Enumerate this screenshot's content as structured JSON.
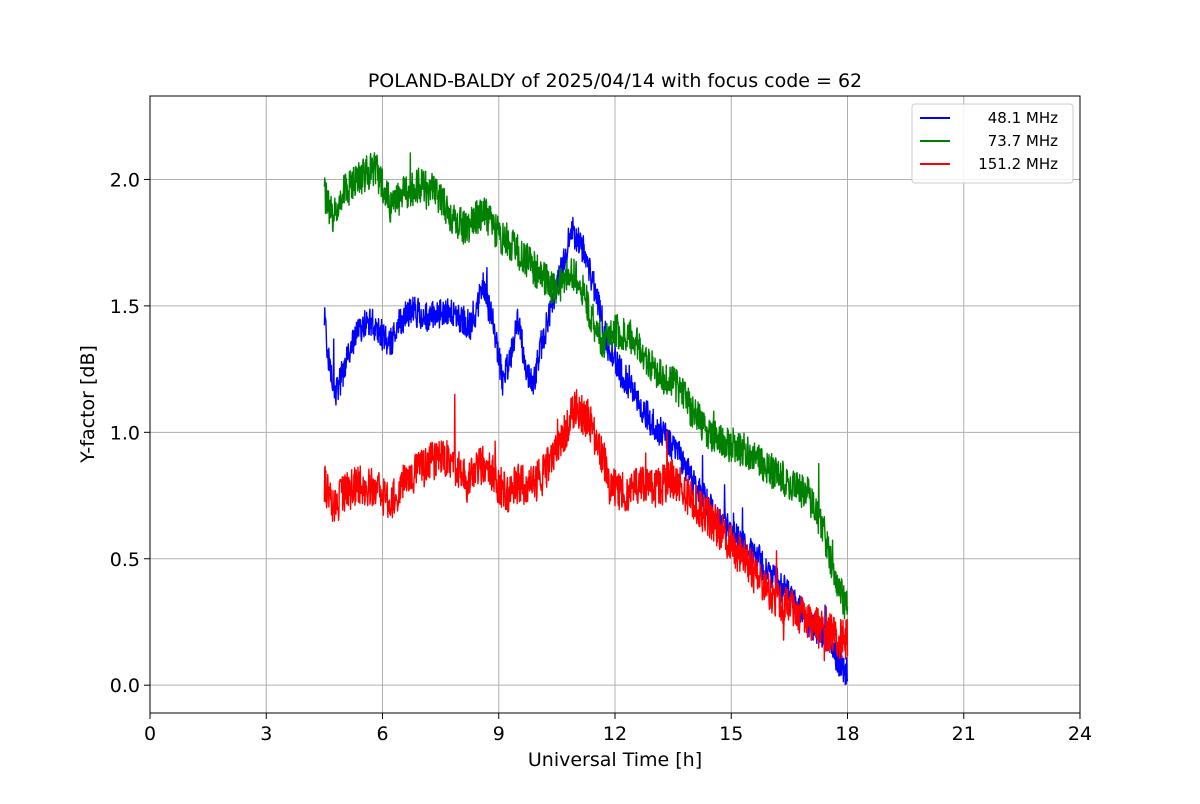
{
  "chart_data": {
    "type": "line",
    "title": "POLAND-BALDY of 2025/04/14 with focus code = 62",
    "xlabel": "Universal Time [h]",
    "ylabel": "Y-factor [dB]",
    "xlim": [
      0,
      24
    ],
    "ylim": [
      -0.11,
      2.33
    ],
    "xticks": [
      0,
      3,
      6,
      9,
      12,
      15,
      18,
      21,
      24
    ],
    "xtick_labels": [
      "0",
      "3",
      "6",
      "9",
      "12",
      "15",
      "18",
      "21",
      "24"
    ],
    "yticks": [
      0.0,
      0.5,
      1.0,
      1.5,
      2.0
    ],
    "ytick_labels": [
      "0.0",
      "0.5",
      "1.0",
      "1.5",
      "2.0"
    ],
    "grid": true,
    "legend_position": "top-right",
    "series": [
      {
        "name": "48.1 MHz",
        "color": "#0000ff",
        "noise": 0.06,
        "x": [
          4.5,
          4.6,
          4.8,
          5.0,
          5.3,
          5.6,
          5.9,
          6.2,
          6.5,
          6.8,
          7.2,
          7.6,
          8.0,
          8.3,
          8.6,
          8.9,
          9.1,
          9.3,
          9.5,
          9.7,
          9.9,
          10.1,
          10.3,
          10.6,
          10.9,
          11.2,
          11.5,
          11.8,
          12.1,
          12.5,
          12.9,
          13.3,
          13.7,
          14.1,
          14.5,
          15.0,
          15.5,
          16.0,
          16.5,
          17.0,
          17.5,
          17.8,
          18.0
        ],
        "y": [
          1.45,
          1.3,
          1.15,
          1.25,
          1.38,
          1.45,
          1.4,
          1.35,
          1.45,
          1.48,
          1.45,
          1.48,
          1.45,
          1.42,
          1.58,
          1.4,
          1.2,
          1.3,
          1.45,
          1.25,
          1.2,
          1.35,
          1.45,
          1.65,
          1.8,
          1.72,
          1.55,
          1.35,
          1.25,
          1.15,
          1.05,
          0.98,
          0.9,
          0.78,
          0.7,
          0.6,
          0.52,
          0.45,
          0.35,
          0.25,
          0.18,
          0.08,
          0.05
        ]
      },
      {
        "name": "73.7 MHz",
        "color": "#008000",
        "noise": 0.07,
        "x": [
          4.5,
          4.7,
          5.0,
          5.4,
          5.8,
          6.2,
          6.6,
          7.0,
          7.4,
          7.8,
          8.2,
          8.6,
          9.0,
          9.3,
          9.6,
          9.9,
          10.2,
          10.5,
          10.8,
          11.1,
          11.4,
          11.7,
          12.0,
          12.4,
          12.8,
          13.2,
          13.6,
          14.0,
          14.5,
          15.0,
          15.5,
          16.0,
          16.5,
          17.0,
          17.4,
          17.7,
          18.0
        ],
        "y": [
          1.95,
          1.85,
          1.95,
          2.0,
          2.05,
          1.9,
          1.95,
          1.98,
          1.95,
          1.85,
          1.8,
          1.88,
          1.78,
          1.75,
          1.7,
          1.65,
          1.6,
          1.55,
          1.65,
          1.6,
          1.45,
          1.35,
          1.4,
          1.38,
          1.3,
          1.22,
          1.18,
          1.08,
          0.98,
          0.95,
          0.92,
          0.85,
          0.8,
          0.75,
          0.6,
          0.4,
          0.3
        ]
      },
      {
        "name": "151.2 MHz",
        "color": "#ff0000",
        "noise": 0.08,
        "x": [
          4.5,
          4.7,
          5.0,
          5.4,
          5.8,
          6.2,
          6.6,
          7.0,
          7.4,
          7.8,
          8.2,
          8.6,
          8.9,
          9.2,
          9.5,
          9.8,
          10.1,
          10.4,
          10.7,
          11.0,
          11.3,
          11.6,
          11.9,
          12.3,
          12.7,
          13.1,
          13.5,
          13.9,
          14.3,
          14.8,
          15.3,
          15.8,
          16.3,
          16.8,
          17.3,
          17.6,
          18.0
        ],
        "y": [
          0.8,
          0.7,
          0.75,
          0.8,
          0.78,
          0.72,
          0.82,
          0.85,
          0.9,
          0.88,
          0.8,
          0.88,
          0.82,
          0.75,
          0.8,
          0.78,
          0.82,
          0.9,
          1.0,
          1.1,
          1.05,
          0.95,
          0.8,
          0.75,
          0.8,
          0.78,
          0.82,
          0.75,
          0.68,
          0.6,
          0.5,
          0.4,
          0.32,
          0.28,
          0.22,
          0.2,
          0.18
        ]
      }
    ]
  }
}
